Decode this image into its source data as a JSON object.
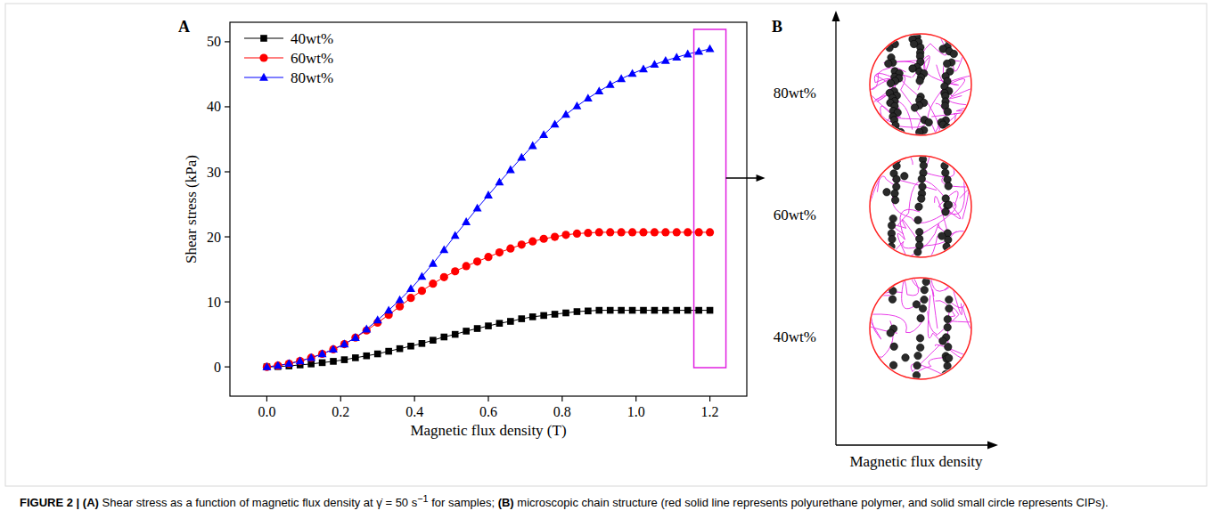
{
  "chart_data": {
    "type": "line",
    "x_label": "Magnetic flux density (T)",
    "y_label": "Shear stress (kPa)",
    "x": [
      0,
      0.03,
      0.06,
      0.09,
      0.12,
      0.15,
      0.18,
      0.21,
      0.24,
      0.27,
      0.3,
      0.33,
      0.36,
      0.39,
      0.42,
      0.45,
      0.48,
      0.51,
      0.54,
      0.57,
      0.6,
      0.63,
      0.66,
      0.69,
      0.72,
      0.75,
      0.78,
      0.81,
      0.84,
      0.87,
      0.9,
      0.93,
      0.96,
      0.99,
      1.02,
      1.05,
      1.08,
      1.11,
      1.14,
      1.17,
      1.2
    ],
    "series": [
      {
        "name": "40wt%",
        "color": "#000000",
        "marker": "square",
        "values": [
          0,
          0.05,
          0.15,
          0.3,
          0.45,
          0.65,
          0.85,
          1.1,
          1.4,
          1.7,
          2.0,
          2.4,
          2.8,
          3.2,
          3.6,
          4.1,
          4.6,
          5.0,
          5.5,
          5.9,
          6.3,
          6.7,
          7.0,
          7.4,
          7.7,
          7.9,
          8.1,
          8.3,
          8.5,
          8.6,
          8.7,
          8.7,
          8.7,
          8.7,
          8.7,
          8.7,
          8.7,
          8.7,
          8.7,
          8.7,
          8.7
        ]
      },
      {
        "name": "60wt%",
        "color": "#ff0000",
        "marker": "circle",
        "values": [
          0,
          0.2,
          0.5,
          0.9,
          1.4,
          2.0,
          2.7,
          3.5,
          4.5,
          5.6,
          6.8,
          8.0,
          9.3,
          10.6,
          11.7,
          12.8,
          13.8,
          14.7,
          15.5,
          16.2,
          16.9,
          17.6,
          18.2,
          18.8,
          19.3,
          19.7,
          20.0,
          20.3,
          20.5,
          20.6,
          20.7,
          20.7,
          20.7,
          20.7,
          20.7,
          20.7,
          20.7,
          20.7,
          20.7,
          20.7,
          20.7
        ]
      },
      {
        "name": "80wt%",
        "color": "#0000ff",
        "marker": "triangle",
        "values": [
          0,
          0.2,
          0.5,
          0.9,
          1.4,
          2.0,
          2.7,
          3.5,
          4.5,
          5.8,
          7.2,
          8.7,
          10.3,
          12.0,
          13.9,
          15.9,
          18.0,
          20.2,
          22.3,
          24.4,
          26.4,
          28.4,
          30.3,
          32.2,
          34.0,
          35.7,
          37.3,
          38.8,
          40.1,
          41.3,
          42.4,
          43.4,
          44.3,
          45.1,
          45.8,
          46.5,
          47.1,
          47.6,
          48.1,
          48.5,
          48.9
        ]
      }
    ],
    "xlim": [
      -0.1,
      1.3
    ],
    "xticks": [
      {
        "value": 0,
        "label": "0.0"
      },
      0.2,
      0.4,
      0.6,
      0.8,
      {
        "value": 1,
        "label": "1.0"
      },
      1.2
    ],
    "ylim": [
      -4.5,
      53
    ],
    "yticks": [
      0,
      10,
      20,
      30,
      40,
      50
    ],
    "grid": false,
    "legend": "upper left"
  },
  "panel_labels": [
    "A",
    "B"
  ],
  "schematic": {
    "rows": [
      "80wt%",
      "60wt%",
      "40wt%"
    ],
    "x_label": "Magnetic flux density"
  },
  "caption": {
    "figure": "FIGURE 2 |",
    "parts": [
      {
        "tag": "(A)",
        "text": "Shear stress as a function of magnetic flux density at γ̇ = 50 s",
        "sup": "−1",
        "tail": "for samples;"
      },
      {
        "tag": "(B)",
        "text": "microscopic chain structure (red solid line represents polyurethane polymer, and solid small circle represents CIPs)."
      }
    ]
  }
}
